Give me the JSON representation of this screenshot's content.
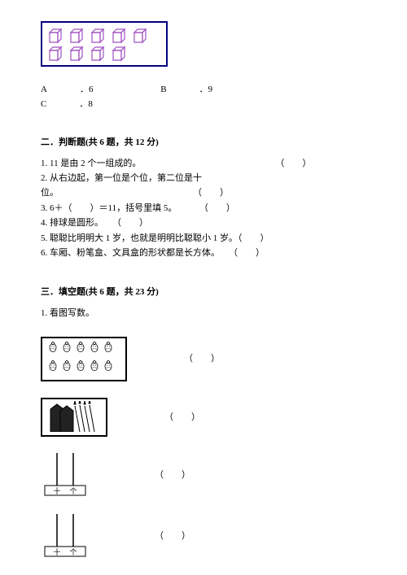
{
  "cubes": {
    "rows": [
      5,
      4
    ],
    "color": "#b070d0",
    "border_color": "#000080"
  },
  "mc": {
    "options": [
      {
        "letter": "A",
        "value": "6"
      },
      {
        "letter": "B",
        "value": "9"
      },
      {
        "letter": "C",
        "value": "8"
      }
    ]
  },
  "section2": {
    "title": "二．判断题(共 6 题，共 12 分)",
    "items": [
      {
        "num": "1",
        "text": "11 是由 2 个一组成的。",
        "paren": "（　　）",
        "pad": 60
      },
      {
        "num": "2",
        "text": "从右边起，第一位是个位，第二位是十位。",
        "paren": "（　　）",
        "pad": 60
      },
      {
        "num": "3",
        "text": "6＋（　　）＝11，括号里填 5。",
        "paren": "（　　）",
        "pad": 10
      },
      {
        "num": "4",
        "text": "排球是圆形。",
        "paren": "（　　）",
        "pad": 4
      },
      {
        "num": "5",
        "text": "聪聪比明明大 1 岁，也就是明明比聪聪小 1 岁。",
        "paren": "（　　）",
        "pad": 0
      },
      {
        "num": "6",
        "text": "车厢、粉笔盒、文具盒的形状都是长方体。",
        "paren": "（　　）",
        "pad": 4
      }
    ]
  },
  "section3": {
    "title": "三．填空题(共 6 题，共 23 分)",
    "q1": "1. 看图写数。",
    "paren": "（　　）",
    "strawberries": {
      "rows": [
        5,
        5
      ]
    },
    "abacus1": {
      "tens_beads": 0,
      "ones_beads": 0,
      "labels": [
        "十",
        "个"
      ]
    },
    "abacus2": {
      "tens_beads": 0,
      "ones_beads": 0,
      "labels": [
        "十",
        "个"
      ]
    }
  },
  "colors": {
    "text": "#000000",
    "bg": "#ffffff"
  }
}
